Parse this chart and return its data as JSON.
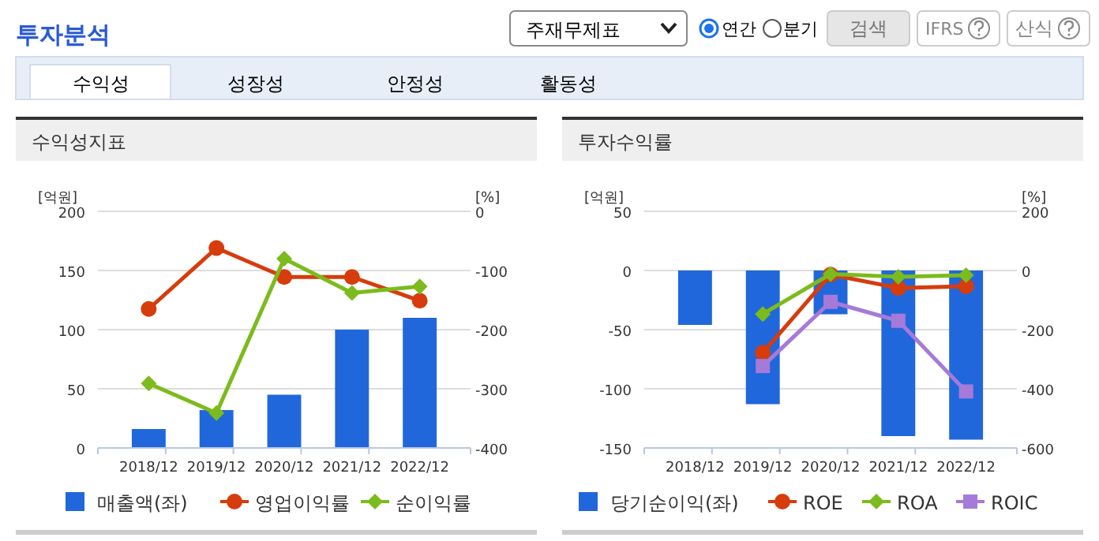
{
  "chart_data": [
    {
      "type": "other",
      "title": "투자분석",
      "annotations": [
        "주재무제표",
        "연간",
        "분기",
        "검색",
        "IFRS",
        "산식",
        "수익성",
        "성장성",
        "안정성",
        "활동성"
      ]
    },
    {
      "type": "bar",
      "title": "수익성지표",
      "ylabel": "[억원]",
      "y2label": "[%]",
      "categories": [
        "2018/12",
        "2019/12",
        "2020/12",
        "2021/12",
        "2022/12"
      ],
      "ylim": [
        0,
        200
      ],
      "yticks": [
        0,
        50,
        100,
        150,
        200
      ],
      "y2lim": [
        -400,
        0
      ],
      "y2ticks": [
        -400,
        -300,
        -200,
        -100,
        0
      ],
      "grid": "y",
      "legend": "bottom",
      "series": [
        {
          "name": "매출액(좌)",
          "type": "bar",
          "color": "#2167dc",
          "values": [
            16,
            32,
            45,
            100,
            110
          ]
        },
        {
          "name": "영업이익률",
          "type": "line",
          "axis": "y2",
          "marker": "circle",
          "color": "#d63c0c",
          "values": [
            -165,
            -62,
            -111,
            -111,
            -151
          ]
        },
        {
          "name": "순이익률",
          "type": "line",
          "axis": "y2",
          "marker": "diamond",
          "color": "#7cbb1c",
          "values": [
            -291,
            -341,
            -80,
            -138,
            -127
          ]
        }
      ]
    },
    {
      "type": "bar",
      "title": "투자수익률",
      "ylabel": "[억원]",
      "y2label": "[%]",
      "categories": [
        "2018/12",
        "2019/12",
        "2020/12",
        "2021/12",
        "2022/12"
      ],
      "ylim": [
        -150,
        50
      ],
      "yticks": [
        -150,
        -100,
        -50,
        0,
        50
      ],
      "y2lim": [
        -600,
        200
      ],
      "y2ticks": [
        -600,
        -400,
        -200,
        0,
        200
      ],
      "grid": "y",
      "legend": "bottom",
      "series": [
        {
          "name": "당기순이익(좌)",
          "type": "bar",
          "color": "#2167dc",
          "values": [
            -46,
            -113,
            -37,
            -140,
            -143
          ]
        },
        {
          "name": "ROE",
          "type": "line",
          "axis": "y2",
          "marker": "circle",
          "color": "#d63c0c",
          "values": [
            null,
            -278,
            -14,
            -59,
            -53
          ]
        },
        {
          "name": "ROA",
          "type": "line",
          "axis": "y2",
          "marker": "diamond",
          "color": "#7cbb1c",
          "values": [
            null,
            -147,
            -12,
            -21,
            -16
          ]
        },
        {
          "name": "ROIC",
          "type": "line",
          "axis": "y2",
          "marker": "square",
          "color": "#a57ad9",
          "values": [
            null,
            -323,
            -106,
            -170,
            -409
          ]
        }
      ]
    }
  ]
}
